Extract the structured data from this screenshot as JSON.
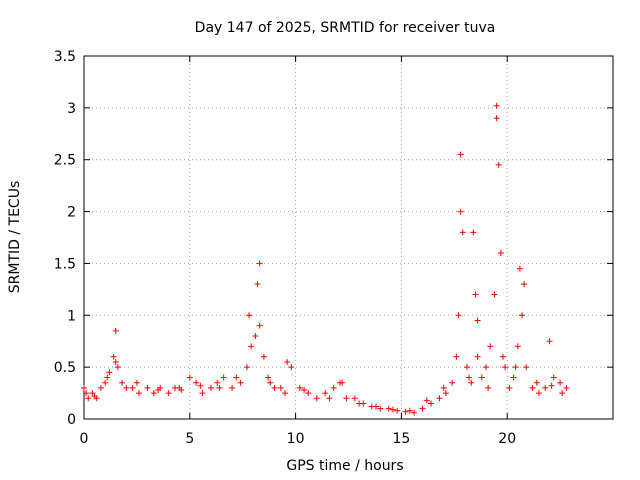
{
  "chart_data": {
    "type": "scatter",
    "title": "Day 147 of 2025, SRMTID for receiver tuva",
    "xlabel": "GPS time / hours",
    "ylabel": "SRMTID / TECUs",
    "xlim": [
      0,
      25
    ],
    "ylim": [
      0,
      3.5
    ],
    "xticks": [
      0,
      5,
      10,
      15,
      20
    ],
    "xtick_labels": [
      "0",
      "5",
      "10",
      "15",
      "20"
    ],
    "yticks": [
      0,
      0.5,
      1,
      1.5,
      2,
      2.5,
      3,
      3.5
    ],
    "ytick_labels": [
      "0",
      "0.5",
      "1",
      "1.5",
      "2",
      "2.5",
      "3",
      "3.5"
    ],
    "grid": true,
    "marker": "+",
    "color": "#ff0000",
    "series": [
      {
        "name": "SRMTID",
        "x": [
          0.0,
          0.2,
          0.4,
          0.6,
          0.8,
          1.0,
          1.2,
          1.4,
          1.5,
          1.6,
          1.8,
          2.0,
          2.3,
          2.6,
          3.0,
          3.3,
          3.6,
          4.0,
          4.3,
          4.6,
          5.0,
          5.3,
          5.6,
          6.0,
          6.3,
          6.6,
          7.0,
          7.4,
          7.7,
          7.9,
          8.1,
          8.2,
          8.3,
          8.5,
          8.8,
          9.0,
          9.3,
          9.5,
          9.8,
          10.2,
          10.6,
          11.0,
          11.4,
          11.8,
          12.1,
          12.4,
          12.8,
          13.2,
          13.6,
          14.0,
          14.4,
          14.8,
          15.2,
          15.6,
          16.0,
          16.4,
          16.8,
          17.1,
          17.4,
          17.6,
          17.7,
          17.8,
          17.9,
          18.1,
          18.3,
          18.4,
          18.5,
          18.6,
          18.8,
          19.0,
          19.2,
          19.4,
          19.5,
          19.6,
          19.7,
          19.9,
          20.1,
          20.3,
          20.5,
          20.6,
          20.7,
          20.9,
          21.2,
          21.5,
          21.8,
          22.0,
          22.2,
          22.5,
          22.8,
          0.1,
          0.5,
          1.1,
          1.5,
          2.5,
          3.5,
          4.5,
          5.5,
          6.4,
          7.2,
          7.8,
          8.3,
          8.7,
          9.6,
          10.4,
          11.6,
          12.2,
          13.0,
          13.8,
          14.6,
          15.4,
          16.2,
          17.0,
          17.8,
          18.2,
          18.6,
          19.1,
          19.5,
          19.8,
          20.4,
          20.8,
          21.4,
          22.1,
          22.6
        ],
        "y": [
          0.3,
          0.2,
          0.25,
          0.2,
          0.3,
          0.35,
          0.45,
          0.6,
          0.85,
          0.5,
          0.35,
          0.3,
          0.3,
          0.25,
          0.3,
          0.25,
          0.3,
          0.25,
          0.3,
          0.28,
          0.4,
          0.35,
          0.25,
          0.3,
          0.35,
          0.4,
          0.3,
          0.35,
          0.5,
          0.7,
          0.8,
          1.3,
          1.5,
          0.6,
          0.35,
          0.3,
          0.3,
          0.25,
          0.5,
          0.3,
          0.25,
          0.2,
          0.25,
          0.3,
          0.35,
          0.2,
          0.2,
          0.15,
          0.12,
          0.1,
          0.1,
          0.08,
          0.07,
          0.06,
          0.1,
          0.15,
          0.2,
          0.25,
          0.35,
          0.6,
          1.0,
          2.55,
          1.8,
          0.5,
          0.35,
          1.8,
          1.2,
          0.6,
          0.4,
          0.5,
          0.7,
          1.2,
          3.02,
          2.45,
          1.6,
          0.5,
          0.3,
          0.4,
          0.7,
          1.45,
          1.0,
          0.5,
          0.3,
          0.25,
          0.3,
          0.75,
          0.4,
          0.35,
          0.3,
          0.25,
          0.22,
          0.4,
          0.55,
          0.35,
          0.28,
          0.3,
          0.32,
          0.3,
          0.4,
          1.0,
          0.9,
          0.4,
          0.55,
          0.28,
          0.2,
          0.35,
          0.15,
          0.12,
          0.09,
          0.08,
          0.18,
          0.3,
          2.0,
          0.4,
          0.95,
          0.3,
          2.9,
          0.6,
          0.5,
          1.3,
          0.35,
          0.32,
          0.25
        ]
      }
    ]
  }
}
